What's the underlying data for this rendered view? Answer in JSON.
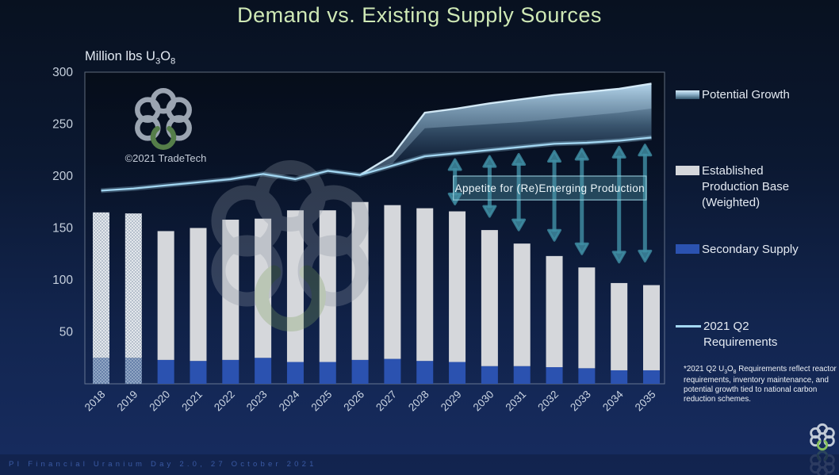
{
  "slide": {
    "title": "Demand vs. Existing Supply Sources",
    "footer": "PI Financial Uranium Day 2.0, 27 October 2021",
    "watermark_credit": "©2021 TradeTech"
  },
  "axis": {
    "ylabel_pre": "Million lbs U",
    "ylabel_sub1": "3",
    "ylabel_mid": "O",
    "ylabel_sub2": "8"
  },
  "legend": {
    "items": [
      {
        "label": "Potential Growth",
        "swatch": "gradient-blue-band"
      },
      {
        "label": "Established Production Base (Weighted)",
        "swatch": "gray-bar"
      },
      {
        "label": "Secondary Supply",
        "swatch": "blue-bar"
      },
      {
        "label": "2021 Q2 Requirements",
        "swatch": "light-blue-line"
      }
    ]
  },
  "footnote": {
    "pre": "*2021 Q2 U",
    "sub1": "3",
    "mid": "O",
    "sub2": "8",
    "post": " Requirements reflect reactor requirements, inventory maintenance, and potential growth tied to national carbon reduction schemes."
  },
  "colors": {
    "title_green": "#cfe9b6",
    "established_gray": "#d5d7db",
    "secondary_blue": "#2b52b0",
    "requirements_line": "#a3d7f2",
    "annotation_teal": "#408ea3",
    "logo_green": "#8dc75e"
  },
  "chart_data": {
    "type": "bar",
    "subtype": "stacked-bars-with-line-and-band",
    "title": "Demand vs. Existing Supply Sources",
    "ylabel": "Million lbs U3O8",
    "ylim": [
      0,
      300
    ],
    "ytick_step": 50,
    "grid": false,
    "legend_position": "right",
    "categories": [
      2018,
      2019,
      2020,
      2021,
      2022,
      2023,
      2024,
      2025,
      2026,
      2027,
      2028,
      2029,
      2030,
      2031,
      2032,
      2033,
      2034,
      2035
    ],
    "hatched_categories": [
      2018,
      2019
    ],
    "series": [
      {
        "name": "Secondary Supply",
        "type": "bar",
        "stack": "supply",
        "color": "#2b52b0",
        "values": [
          25,
          25,
          23,
          22,
          23,
          25,
          21,
          21,
          23,
          24,
          22,
          21,
          17,
          17,
          16,
          15,
          13,
          13
        ]
      },
      {
        "name": "Established Production Base (Weighted)",
        "type": "bar",
        "stack": "supply",
        "color": "#d5d7db",
        "values": [
          140,
          139,
          124,
          128,
          135,
          134,
          146,
          146,
          152,
          148,
          147,
          145,
          131,
          118,
          107,
          97,
          84,
          82
        ]
      },
      {
        "name": "2021 Q2 Requirements",
        "type": "line",
        "color": "#a3d7f2",
        "values": [
          186,
          188,
          191,
          194,
          197,
          202,
          197,
          205,
          201,
          210,
          219,
          222,
          225,
          228,
          231,
          232,
          234,
          237
        ]
      },
      {
        "name": "Potential Growth",
        "type": "band",
        "color": "#9cc4de",
        "upper_values": [
          null,
          null,
          null,
          null,
          null,
          null,
          null,
          null,
          201,
          220,
          261,
          265,
          270,
          274,
          278,
          281,
          284,
          289
        ],
        "inner_values": [
          null,
          null,
          null,
          null,
          null,
          null,
          null,
          null,
          201,
          212,
          246,
          248,
          250,
          252,
          255,
          258,
          261,
          265
        ]
      }
    ],
    "annotation": {
      "text": "Appetite for (Re)Emerging Production",
      "box": {
        "year_from": 2028.93,
        "year_to": 2034.79,
        "value_top": 200,
        "value_bottom": 177
      },
      "arrows": [
        {
          "x_year": 2028.93,
          "top_value": 216,
          "bottom_value": 173
        },
        {
          "x_year": 2030.0,
          "top_value": 219,
          "bottom_value": 161
        },
        {
          "x_year": 2030.9,
          "top_value": 221,
          "bottom_value": 148
        },
        {
          "x_year": 2032.0,
          "top_value": 224,
          "bottom_value": 138
        },
        {
          "x_year": 2032.85,
          "top_value": 226,
          "bottom_value": 125
        },
        {
          "x_year": 2034.0,
          "top_value": 228,
          "bottom_value": 117
        },
        {
          "x_year": 2034.8,
          "top_value": 230,
          "bottom_value": 118
        }
      ]
    }
  }
}
